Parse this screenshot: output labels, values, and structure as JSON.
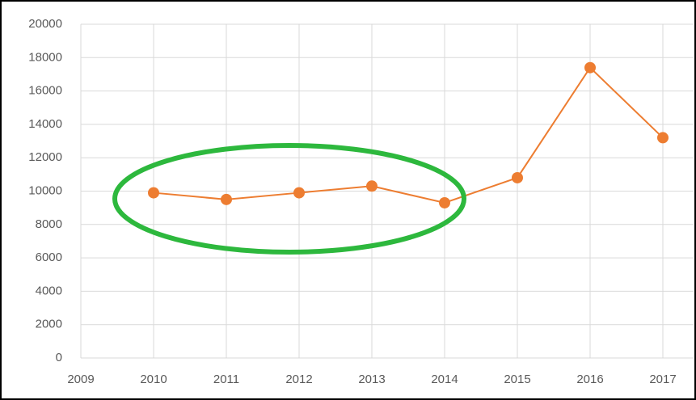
{
  "chart_data": {
    "type": "line",
    "x": [
      2010,
      2011,
      2012,
      2013,
      2014,
      2015,
      2016,
      2017
    ],
    "series": [
      {
        "color": "#ed7d31",
        "values": [
          9900,
          9500,
          9900,
          10300,
          9300,
          10800,
          17400,
          13200
        ]
      }
    ],
    "xlim": [
      2009,
      2017.5
    ],
    "xticks": [
      2009,
      2010,
      2011,
      2012,
      2013,
      2014,
      2015,
      2016,
      2017
    ],
    "ylim": [
      0,
      20000
    ],
    "yticks": [
      0,
      2000,
      4000,
      6000,
      8000,
      10000,
      12000,
      14000,
      16000,
      18000,
      20000
    ],
    "grid": true
  }
}
